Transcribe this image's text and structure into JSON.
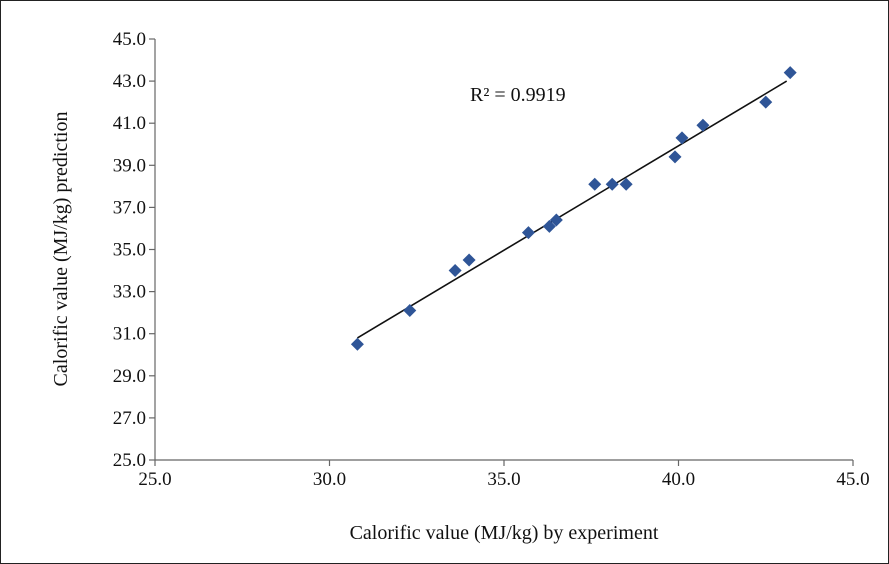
{
  "chart_data": {
    "type": "scatter",
    "title": "",
    "xlabel": "Calorific  value  (MJ/kg)  by  experiment",
    "ylabel": "Calorific  value  (MJ/kg)  prediction",
    "xlim": [
      25.0,
      45.0
    ],
    "ylim": [
      25.0,
      45.0
    ],
    "xticks": [
      "25.0",
      "30.0",
      "35.0",
      "40.0",
      "45.0"
    ],
    "yticks": [
      "25.0",
      "27.0",
      "29.0",
      "31.0",
      "33.0",
      "35.0",
      "37.0",
      "39.0",
      "41.0",
      "43.0",
      "45.0"
    ],
    "grid": false,
    "annotation": "R² = 0.9919",
    "series": [
      {
        "marker": "diamond",
        "color": "#2F5597",
        "points": [
          {
            "x": 30.8,
            "y": 30.5
          },
          {
            "x": 32.3,
            "y": 32.1
          },
          {
            "x": 33.6,
            "y": 34.0
          },
          {
            "x": 34.0,
            "y": 34.5
          },
          {
            "x": 35.7,
            "y": 35.8
          },
          {
            "x": 36.3,
            "y": 36.1
          },
          {
            "x": 36.5,
            "y": 36.4
          },
          {
            "x": 37.6,
            "y": 38.1
          },
          {
            "x": 38.1,
            "y": 38.1
          },
          {
            "x": 38.5,
            "y": 38.1
          },
          {
            "x": 39.9,
            "y": 39.4
          },
          {
            "x": 40.1,
            "y": 40.3
          },
          {
            "x": 40.7,
            "y": 40.9
          },
          {
            "x": 42.5,
            "y": 42.0
          },
          {
            "x": 43.2,
            "y": 43.4
          }
        ]
      }
    ],
    "trendline": {
      "type": "linear",
      "color": "#111111",
      "from": {
        "x": 30.8,
        "y": 30.8
      },
      "to": {
        "x": 43.1,
        "y": 43.0
      }
    }
  }
}
